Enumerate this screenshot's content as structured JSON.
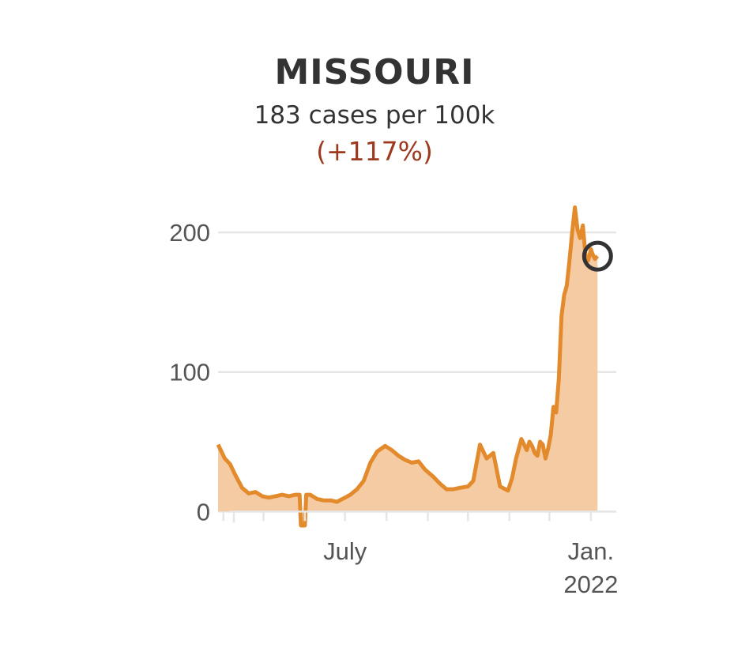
{
  "header": {
    "title": "MISSOURI",
    "subtitle": "183 cases per 100k",
    "change": "(+117%)"
  },
  "colors": {
    "line": "#e38b2c",
    "area": "#f5cba4",
    "change": "#9c3a1f",
    "grid": "#e6e6e6",
    "marker": "#333333"
  },
  "chart_data": {
    "type": "area",
    "title": "MISSOURI",
    "subtitle": "183 cases per 100k",
    "x_ticks": [
      {
        "date": "2021-07-01",
        "label": "July"
      },
      {
        "date": "2022-01-01",
        "label": "Jan.",
        "sublabel": "2022"
      }
    ],
    "y_ticks": [
      0,
      100,
      200
    ],
    "ylim": [
      -10,
      225
    ],
    "xlim": [
      "2021-03-28",
      "2022-01-20"
    ],
    "grid": true,
    "highlight": {
      "date": "2022-01-06",
      "value": 183
    },
    "series": [
      {
        "x": [
          "2021-03-28",
          "2021-03-30",
          "2021-04-02",
          "2021-04-06",
          "2021-04-10",
          "2021-04-15",
          "2021-04-20",
          "2021-04-25",
          "2021-04-30",
          "2021-05-05",
          "2021-05-10",
          "2021-05-15",
          "2021-05-20",
          "2021-05-25",
          "2021-05-28",
          "2021-05-29",
          "2021-06-01",
          "2021-06-02",
          "2021-06-05",
          "2021-06-10",
          "2021-06-15",
          "2021-06-20",
          "2021-06-25",
          "2021-07-01",
          "2021-07-05",
          "2021-07-10",
          "2021-07-15",
          "2021-07-20",
          "2021-07-25",
          "2021-07-31",
          "2021-08-05",
          "2021-08-10",
          "2021-08-15",
          "2021-08-20",
          "2021-08-25",
          "2021-08-30",
          "2021-09-05",
          "2021-09-10",
          "2021-09-15",
          "2021-09-20",
          "2021-09-25",
          "2021-10-01",
          "2021-10-05",
          "2021-10-10",
          "2021-10-15",
          "2021-10-20",
          "2021-10-25",
          "2021-10-31",
          "2021-11-03",
          "2021-11-06",
          "2021-11-10",
          "2021-11-12",
          "2021-11-14",
          "2021-11-16",
          "2021-11-18",
          "2021-11-20",
          "2021-11-22",
          "2021-11-24",
          "2021-11-26",
          "2021-11-28",
          "2021-11-30",
          "2021-12-02",
          "2021-12-04",
          "2021-12-06",
          "2021-12-08",
          "2021-12-10",
          "2021-12-12",
          "2021-12-14",
          "2021-12-16",
          "2021-12-18",
          "2021-12-20",
          "2021-12-22",
          "2021-12-24",
          "2021-12-26",
          "2021-12-28",
          "2021-12-30",
          "2022-01-01",
          "2022-01-02",
          "2022-01-03",
          "2022-01-04",
          "2022-01-05",
          "2022-01-06"
        ],
        "values": [
          48,
          44,
          38,
          34,
          26,
          17,
          13,
          14,
          11,
          10,
          11,
          12,
          11,
          12,
          12,
          -10,
          -10,
          12,
          12,
          9,
          8,
          8,
          7,
          10,
          12,
          16,
          22,
          35,
          43,
          47,
          44,
          40,
          37,
          35,
          36,
          30,
          25,
          20,
          16,
          16,
          17,
          18,
          22,
          48,
          38,
          42,
          18,
          15,
          24,
          38,
          52,
          48,
          44,
          50,
          47,
          42,
          40,
          50,
          48,
          38,
          45,
          55,
          75,
          71,
          95,
          140,
          155,
          162,
          180,
          200,
          218,
          202,
          196,
          205,
          183,
          180,
          188,
          185,
          183,
          181,
          182,
          183
        ]
      }
    ]
  }
}
